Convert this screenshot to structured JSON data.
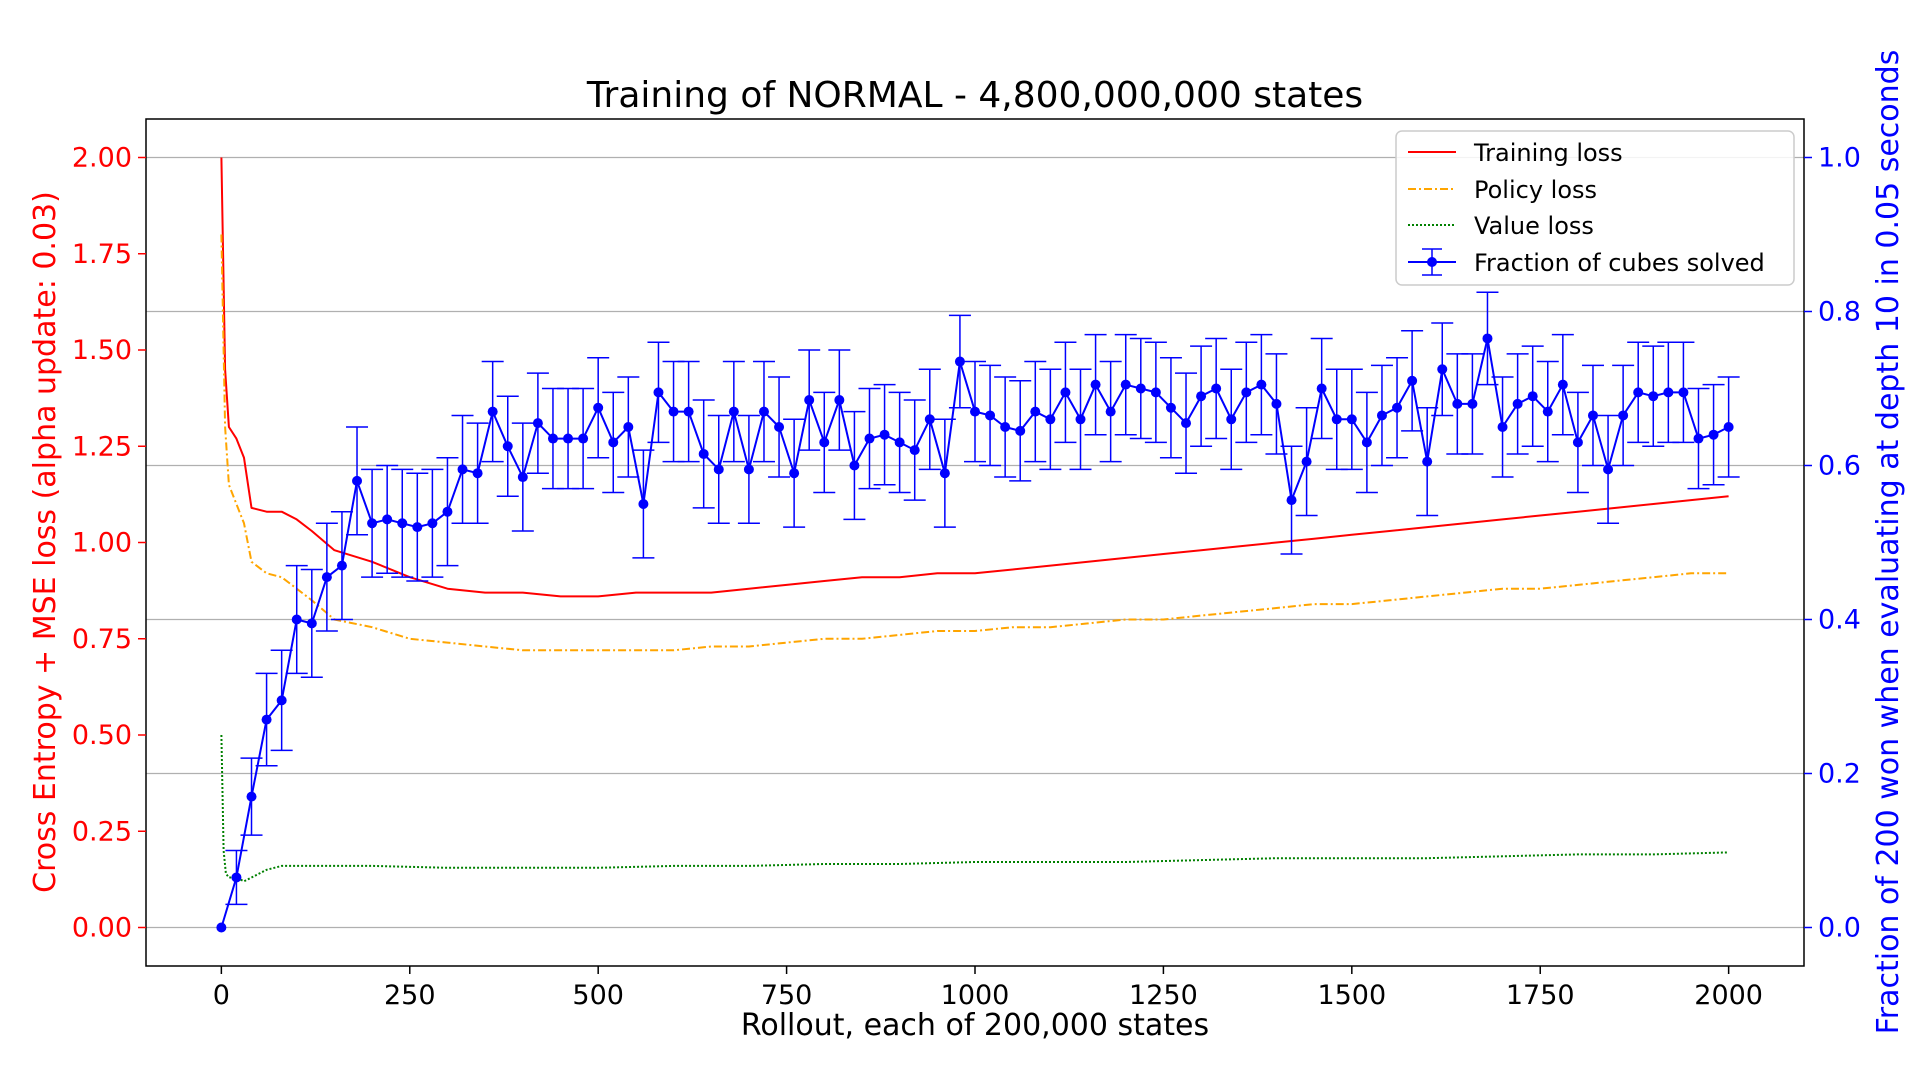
{
  "chart_data": {
    "type": "line",
    "title": "Training of NORMAL - 4,800,000,000 states",
    "xlabel": "Rollout, each of 200,000 states",
    "ylabel_left": "Cross Entropy + MSE loss (alpha update: 0.03)",
    "ylabel_right": "Fraction of 200 won when evaluating at depth 10 in 0.05 seconds",
    "xlim": [
      -100,
      2100
    ],
    "ylim_left": [
      -0.1,
      2.1
    ],
    "ylim_right": [
      -0.05,
      1.05
    ],
    "x_ticks": [
      0,
      250,
      500,
      750,
      1000,
      1250,
      1500,
      1750,
      2000
    ],
    "x_tick_labels": [
      "0",
      "250",
      "500",
      "750",
      "1000",
      "1250",
      "1500",
      "1750",
      "2000"
    ],
    "y_left_ticks": [
      0,
      0.25,
      0.5,
      0.75,
      1.0,
      1.25,
      1.5,
      1.75,
      2.0
    ],
    "y_left_tick_labels": [
      "0.00",
      "0.25",
      "0.50",
      "0.75",
      "1.00",
      "1.25",
      "1.50",
      "1.75",
      "2.00"
    ],
    "y_right_ticks": [
      0,
      0.2,
      0.4,
      0.6,
      0.8,
      1.0
    ],
    "y_right_tick_labels": [
      "0.0",
      "0.2",
      "0.4",
      "0.6",
      "0.8",
      "1.0"
    ],
    "grid": "horizontal, right axis",
    "legend_position": "top-right",
    "colors": {
      "training": "#ff0000",
      "policy": "#ffa500",
      "value": "#008000",
      "fraction": "#0000ff",
      "left_axis": "#ff0000",
      "right_axis": "#0000ff"
    },
    "series": [
      {
        "name": "Training loss",
        "axis": "left",
        "style": "solid",
        "x": [
          0,
          5,
          10,
          20,
          30,
          40,
          60,
          80,
          100,
          120,
          150,
          200,
          250,
          300,
          350,
          400,
          450,
          500,
          550,
          600,
          650,
          700,
          750,
          800,
          850,
          900,
          950,
          1000,
          1050,
          1100,
          1150,
          1200,
          1250,
          1300,
          1350,
          1400,
          1450,
          1500,
          1550,
          1600,
          1650,
          1700,
          1750,
          1800,
          1850,
          1900,
          1950,
          2000
        ],
        "values": [
          2.0,
          1.45,
          1.3,
          1.27,
          1.22,
          1.09,
          1.08,
          1.08,
          1.06,
          1.03,
          0.98,
          0.95,
          0.91,
          0.88,
          0.87,
          0.87,
          0.86,
          0.86,
          0.87,
          0.87,
          0.87,
          0.88,
          0.89,
          0.9,
          0.91,
          0.91,
          0.92,
          0.92,
          0.93,
          0.94,
          0.95,
          0.96,
          0.97,
          0.98,
          0.99,
          1.0,
          1.01,
          1.02,
          1.03,
          1.04,
          1.05,
          1.06,
          1.07,
          1.08,
          1.09,
          1.1,
          1.11,
          1.12
        ]
      },
      {
        "name": "Policy loss",
        "axis": "left",
        "style": "dashdot",
        "x": [
          0,
          5,
          10,
          20,
          30,
          40,
          60,
          80,
          100,
          120,
          150,
          200,
          250,
          300,
          350,
          400,
          450,
          500,
          550,
          600,
          650,
          700,
          750,
          800,
          850,
          900,
          950,
          1000,
          1050,
          1100,
          1150,
          1200,
          1250,
          1300,
          1350,
          1400,
          1450,
          1500,
          1550,
          1600,
          1650,
          1700,
          1750,
          1800,
          1850,
          1900,
          1950,
          2000
        ],
        "values": [
          1.8,
          1.3,
          1.15,
          1.1,
          1.05,
          0.95,
          0.92,
          0.91,
          0.88,
          0.85,
          0.8,
          0.78,
          0.75,
          0.74,
          0.73,
          0.72,
          0.72,
          0.72,
          0.72,
          0.72,
          0.73,
          0.73,
          0.74,
          0.75,
          0.75,
          0.76,
          0.77,
          0.77,
          0.78,
          0.78,
          0.79,
          0.8,
          0.8,
          0.81,
          0.82,
          0.83,
          0.84,
          0.84,
          0.85,
          0.86,
          0.87,
          0.88,
          0.88,
          0.89,
          0.9,
          0.91,
          0.92,
          0.92
        ]
      },
      {
        "name": "Value loss",
        "axis": "left",
        "style": "dotted",
        "x": [
          0,
          3,
          6,
          10,
          20,
          30,
          40,
          60,
          80,
          100,
          150,
          200,
          300,
          400,
          500,
          600,
          700,
          800,
          900,
          1000,
          1100,
          1200,
          1300,
          1400,
          1500,
          1600,
          1700,
          1800,
          1900,
          2000
        ],
        "values": [
          0.5,
          0.2,
          0.14,
          0.13,
          0.13,
          0.12,
          0.13,
          0.15,
          0.16,
          0.16,
          0.16,
          0.16,
          0.155,
          0.155,
          0.155,
          0.16,
          0.16,
          0.165,
          0.165,
          0.17,
          0.17,
          0.17,
          0.175,
          0.18,
          0.18,
          0.18,
          0.185,
          0.19,
          0.19,
          0.195
        ]
      },
      {
        "name": "Fraction of cubes solved",
        "axis": "right",
        "style": "solid-markers",
        "x": [
          0,
          20,
          40,
          60,
          80,
          100,
          120,
          140,
          160,
          180,
          200,
          220,
          240,
          260,
          280,
          300,
          320,
          340,
          360,
          380,
          400,
          420,
          440,
          460,
          480,
          500,
          520,
          540,
          560,
          580,
          600,
          620,
          640,
          660,
          680,
          700,
          720,
          740,
          760,
          780,
          800,
          820,
          840,
          860,
          880,
          900,
          920,
          940,
          960,
          980,
          1000,
          1020,
          1040,
          1060,
          1080,
          1100,
          1120,
          1140,
          1160,
          1180,
          1200,
          1220,
          1240,
          1260,
          1280,
          1300,
          1320,
          1340,
          1360,
          1380,
          1400,
          1420,
          1440,
          1460,
          1480,
          1500,
          1520,
          1540,
          1560,
          1580,
          1600,
          1620,
          1640,
          1660,
          1680,
          1700,
          1720,
          1740,
          1760,
          1780,
          1800,
          1820,
          1840,
          1860,
          1880,
          1900,
          1920,
          1940,
          1960,
          1980,
          2000
        ],
        "values": [
          0.0,
          0.065,
          0.17,
          0.27,
          0.295,
          0.4,
          0.395,
          0.455,
          0.47,
          0.58,
          0.525,
          0.53,
          0.525,
          0.52,
          0.525,
          0.54,
          0.595,
          0.59,
          0.67,
          0.625,
          0.585,
          0.655,
          0.635,
          0.635,
          0.635,
          0.675,
          0.63,
          0.65,
          0.55,
          0.695,
          0.67,
          0.67,
          0.615,
          0.595,
          0.67,
          0.595,
          0.67,
          0.65,
          0.59,
          0.685,
          0.63,
          0.685,
          0.6,
          0.635,
          0.64,
          0.63,
          0.62,
          0.66,
          0.59,
          0.735,
          0.67,
          0.665,
          0.65,
          0.645,
          0.67,
          0.66,
          0.695,
          0.66,
          0.705,
          0.67,
          0.705,
          0.7,
          0.695,
          0.675,
          0.655,
          0.69,
          0.7,
          0.66,
          0.695,
          0.705,
          0.68,
          0.555,
          0.605,
          0.7,
          0.66,
          0.66,
          0.63,
          0.665,
          0.675,
          0.71,
          0.605,
          0.725,
          0.68,
          0.68,
          0.765,
          0.65,
          0.68,
          0.69,
          0.67,
          0.705,
          0.63,
          0.665,
          0.595,
          0.665,
          0.695,
          0.69,
          0.695,
          0.695,
          0.635,
          0.64,
          0.65
        ],
        "error": [
          0.0,
          0.035,
          0.05,
          0.06,
          0.065,
          0.07,
          0.07,
          0.07,
          0.07,
          0.07,
          0.07,
          0.07,
          0.07,
          0.07,
          0.07,
          0.07,
          0.07,
          0.065,
          0.065,
          0.065,
          0.07,
          0.065,
          0.065,
          0.065,
          0.065,
          0.065,
          0.065,
          0.065,
          0.07,
          0.065,
          0.065,
          0.065,
          0.07,
          0.07,
          0.065,
          0.07,
          0.065,
          0.065,
          0.07,
          0.065,
          0.065,
          0.065,
          0.07,
          0.065,
          0.065,
          0.065,
          0.065,
          0.065,
          0.07,
          0.06,
          0.065,
          0.065,
          0.065,
          0.065,
          0.065,
          0.065,
          0.065,
          0.065,
          0.065,
          0.065,
          0.065,
          0.065,
          0.065,
          0.065,
          0.065,
          0.065,
          0.065,
          0.065,
          0.065,
          0.065,
          0.065,
          0.07,
          0.07,
          0.065,
          0.065,
          0.065,
          0.065,
          0.065,
          0.065,
          0.065,
          0.07,
          0.06,
          0.065,
          0.065,
          0.06,
          0.065,
          0.065,
          0.065,
          0.065,
          0.065,
          0.065,
          0.065,
          0.07,
          0.065,
          0.065,
          0.065,
          0.065,
          0.065,
          0.065,
          0.065,
          0.065
        ]
      }
    ]
  }
}
